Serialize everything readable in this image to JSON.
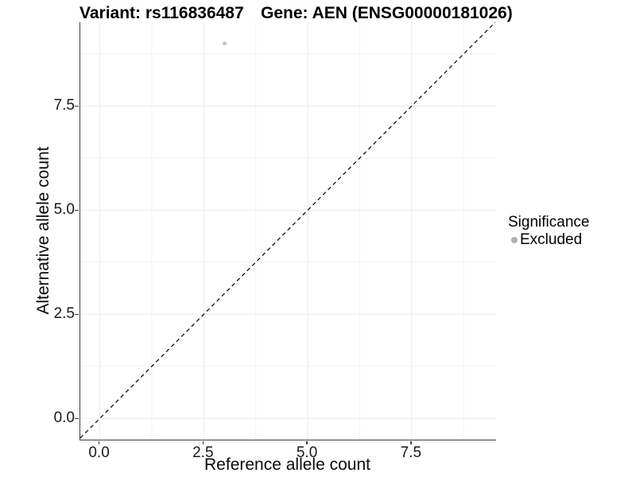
{
  "chart_data": {
    "type": "scatter",
    "title": "Variant: rs116836487        Gene: AEN (ENSG00000181026)",
    "title_parts": {
      "variant": "Variant: rs116836487",
      "gene": "Gene: AEN (ENSG00000181026)"
    },
    "xlabel": "Reference allele count",
    "ylabel": "Alternative allele count",
    "xlim": [
      -0.47,
      9.53
    ],
    "ylim": [
      -0.51,
      9.51
    ],
    "x_ticks": {
      "values": [
        0,
        2.5,
        5,
        7.5
      ],
      "labels": [
        "0.0",
        "2.5",
        "5.0",
        "7.5"
      ]
    },
    "y_ticks": {
      "values": [
        0,
        2.5,
        5,
        7.5
      ],
      "labels": [
        "0.0",
        "2.5",
        "5.0",
        "7.5"
      ]
    },
    "minor_tick_values": [
      1.25,
      3.75,
      6.25,
      8.75
    ],
    "grid": {
      "major": true,
      "minor": true,
      "major_color": "#eaeaea",
      "minor_color": "#f4f4f4"
    },
    "series": [
      {
        "name": "Excluded",
        "marker": "circle",
        "color": "#c2c2c2",
        "points": [
          {
            "x": 3,
            "y": 9
          }
        ]
      }
    ],
    "reference_line": {
      "kind": "identity",
      "slope": 1,
      "intercept": 0,
      "linestyle": "dashed",
      "dash_pattern": "5,4",
      "color": "#000000"
    },
    "legend": {
      "title": "Significance",
      "position": "right",
      "items": [
        {
          "label": "Excluded",
          "marker": "circle",
          "color": "#b0b0b0"
        }
      ]
    },
    "axis_color": "#3f3f3f",
    "point_radius": 2.5
  }
}
